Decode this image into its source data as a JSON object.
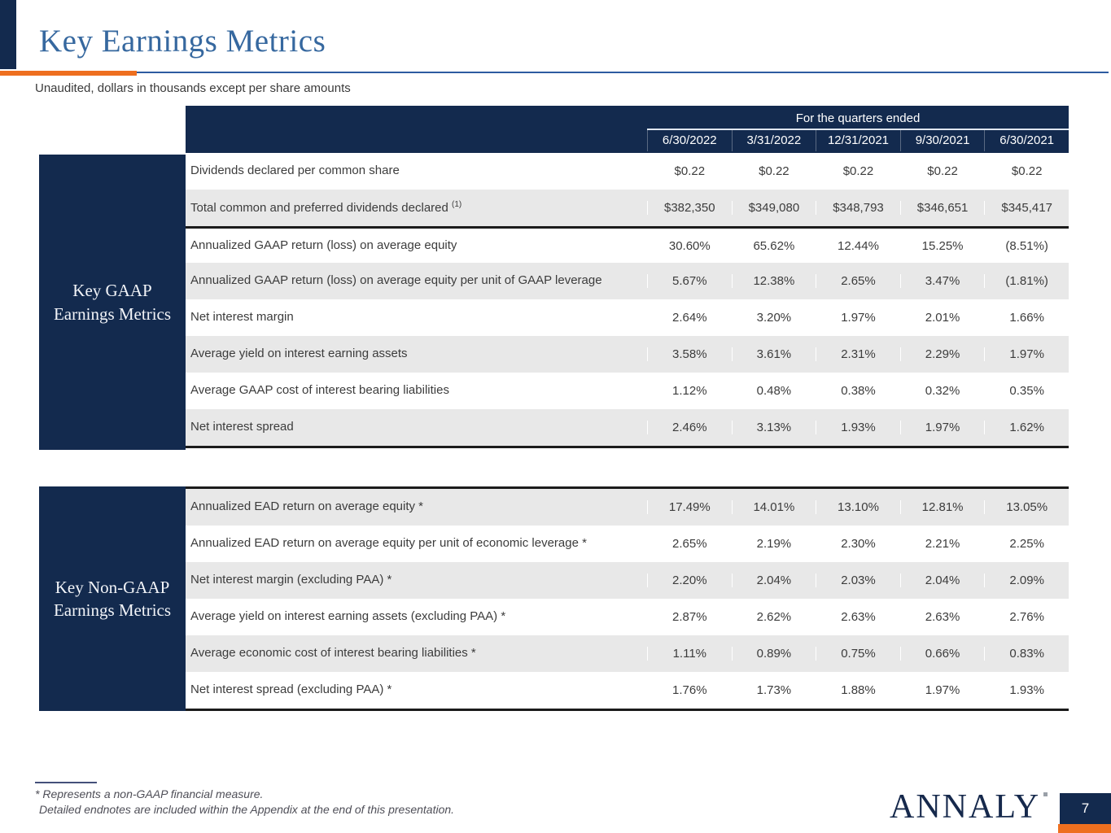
{
  "slide": {
    "title": "Key Earnings Metrics",
    "subtitle": "Unaudited, dollars in thousands except per share amounts",
    "page_number": "7",
    "logo_text": "ANNALY",
    "colors": {
      "navy": "#132a4e",
      "orange": "#ee6f1f",
      "title_blue": "#36689f",
      "rule_blue": "#2d5ba0",
      "row_gray": "#e8e8e8",
      "body_text": "#3c3c3c"
    }
  },
  "table_header": {
    "quarters_label": "For the quarters ended",
    "dates": [
      "6/30/2022",
      "3/31/2022",
      "12/31/2021",
      "9/30/2021",
      "6/30/2021"
    ]
  },
  "gaap_section": {
    "label_line1": "Key GAAP",
    "label_line2": "Earnings Metrics",
    "rows": [
      {
        "label": "Dividends declared per common share",
        "values": [
          "$0.22",
          "$0.22",
          "$0.22",
          "$0.22",
          "$0.22"
        ]
      },
      {
        "label": "Total common and preferred dividends declared",
        "sup": "(1)",
        "values": [
          "$382,350",
          "$349,080",
          "$348,793",
          "$346,651",
          "$345,417"
        ]
      },
      {
        "label": "Annualized GAAP return (loss) on average equity",
        "values": [
          "30.60%",
          "65.62%",
          "12.44%",
          "15.25%",
          "(8.51%)"
        ]
      },
      {
        "label": "Annualized GAAP return (loss) on average equity per unit of GAAP leverage",
        "values": [
          "5.67%",
          "12.38%",
          "2.65%",
          "3.47%",
          "(1.81%)"
        ]
      },
      {
        "label": "Net interest margin",
        "values": [
          "2.64%",
          "3.20%",
          "1.97%",
          "2.01%",
          "1.66%"
        ]
      },
      {
        "label": "Average yield on interest earning assets",
        "values": [
          "3.58%",
          "3.61%",
          "2.31%",
          "2.29%",
          "1.97%"
        ]
      },
      {
        "label": "Average GAAP cost of interest bearing liabilities",
        "values": [
          "1.12%",
          "0.48%",
          "0.38%",
          "0.32%",
          "0.35%"
        ]
      },
      {
        "label": "Net interest spread",
        "values": [
          "2.46%",
          "3.13%",
          "1.93%",
          "1.97%",
          "1.62%"
        ]
      }
    ]
  },
  "non_gaap_section": {
    "label_line1": "Key Non-GAAP",
    "label_line2": "Earnings Metrics",
    "rows": [
      {
        "label": "Annualized EAD return on average equity *",
        "values": [
          "17.49%",
          "14.01%",
          "13.10%",
          "12.81%",
          "13.05%"
        ]
      },
      {
        "label": "Annualized EAD return on average equity per unit of economic leverage *",
        "values": [
          "2.65%",
          "2.19%",
          "2.30%",
          "2.21%",
          "2.25%"
        ]
      },
      {
        "label": "Net interest margin (excluding PAA) *",
        "values": [
          "2.20%",
          "2.04%",
          "2.03%",
          "2.04%",
          "2.09%"
        ]
      },
      {
        "label": "Average yield on interest earning assets (excluding PAA) *",
        "values": [
          "2.87%",
          "2.62%",
          "2.63%",
          "2.63%",
          "2.76%"
        ]
      },
      {
        "label": "Average economic cost of interest bearing liabilities *",
        "values": [
          "1.11%",
          "0.89%",
          "0.75%",
          "0.66%",
          "0.83%"
        ]
      },
      {
        "label": "Net interest spread (excluding PAA) *",
        "values": [
          "1.76%",
          "1.73%",
          "1.88%",
          "1.97%",
          "1.93%"
        ]
      }
    ]
  },
  "footnotes": {
    "line1": "* Represents a non-GAAP financial measure.",
    "line2": "Detailed endnotes are included within the Appendix at the end of this presentation."
  }
}
